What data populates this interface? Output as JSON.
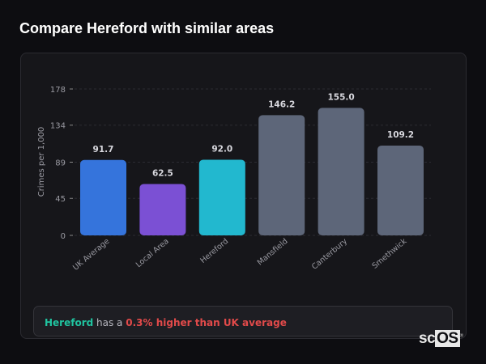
{
  "title": "Compare Hereford with similar areas",
  "chart_data": {
    "type": "bar",
    "title": "",
    "xlabel": "",
    "ylabel": "Crimes per 1,000",
    "ylim": [
      0,
      178
    ],
    "yticks": [
      0,
      45,
      89,
      134,
      178
    ],
    "grid": true,
    "categories": [
      "UK Average",
      "Local Area",
      "Hereford",
      "Mansfield",
      "Canterbury",
      "Smethwick"
    ],
    "values": [
      91.7,
      62.5,
      92.0,
      146.2,
      155.0,
      109.2
    ],
    "value_labels": [
      "91.7",
      "62.5",
      "92.0",
      "146.2",
      "155.0",
      "109.2"
    ],
    "colors": [
      "#3574dc",
      "#7b50d4",
      "#22b8cf",
      "#5d6679",
      "#5d6679",
      "#5d6679"
    ]
  },
  "summary": {
    "area": "Hereford",
    "middle": " has a ",
    "comparison": "0.3% higher than UK average"
  },
  "logo": {
    "text_a": "sc",
    "text_b": "OS",
    "mark": "®"
  }
}
